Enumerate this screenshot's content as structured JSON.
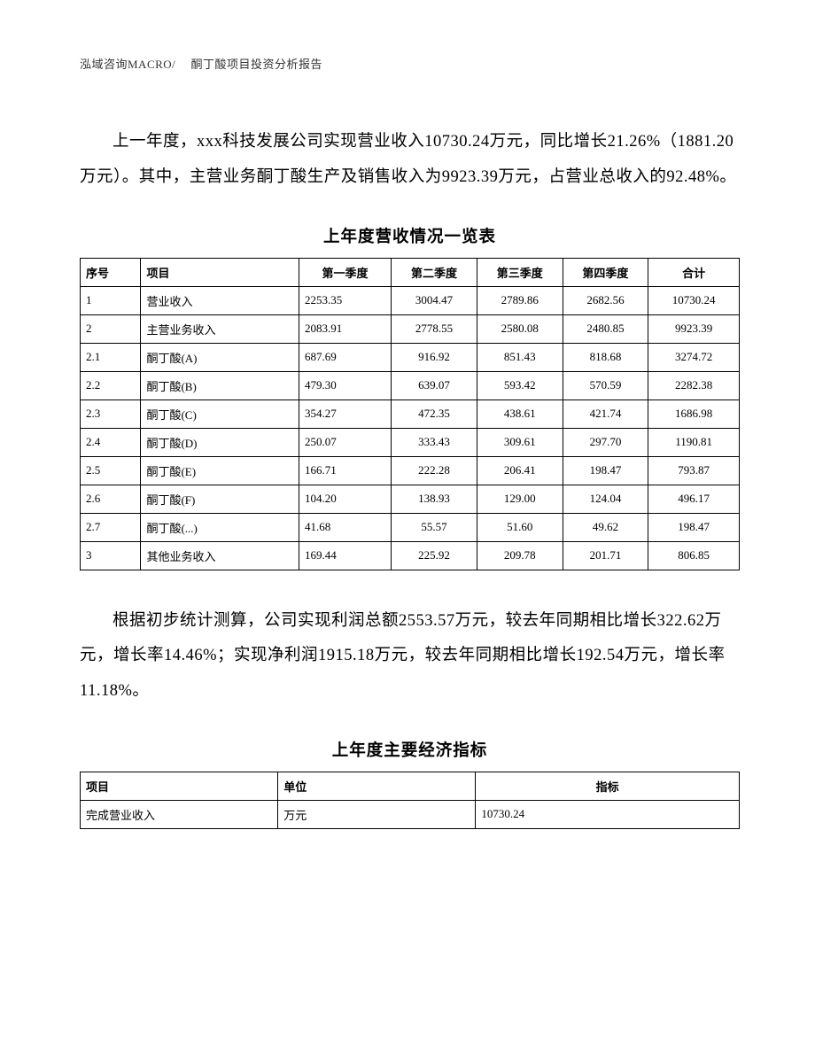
{
  "header": "泓域咨询MACRO/　 酮丁酸项目投资分析报告",
  "paragraph1": "上一年度，xxx科技发展公司实现营业收入10730.24万元，同比增长21.26%（1881.20万元）。其中，主营业务酮丁酸生产及销售收入为9923.39万元，占营业总收入的92.48%。",
  "table1": {
    "title": "上年度营收情况一览表",
    "headers": [
      "序号",
      "项目",
      "第一季度",
      "第二季度",
      "第三季度",
      "第四季度",
      "合计"
    ],
    "rows": [
      [
        "1",
        "营业收入",
        "2253.35",
        "3004.47",
        "2789.86",
        "2682.56",
        "10730.24"
      ],
      [
        "2",
        "主营业务收入",
        "2083.91",
        "2778.55",
        "2580.08",
        "2480.85",
        "9923.39"
      ],
      [
        "2.1",
        "酮丁酸(A)",
        "687.69",
        "916.92",
        "851.43",
        "818.68",
        "3274.72"
      ],
      [
        "2.2",
        "酮丁酸(B)",
        "479.30",
        "639.07",
        "593.42",
        "570.59",
        "2282.38"
      ],
      [
        "2.3",
        "酮丁酸(C)",
        "354.27",
        "472.35",
        "438.61",
        "421.74",
        "1686.98"
      ],
      [
        "2.4",
        "酮丁酸(D)",
        "250.07",
        "333.43",
        "309.61",
        "297.70",
        "1190.81"
      ],
      [
        "2.5",
        "酮丁酸(E)",
        "166.71",
        "222.28",
        "206.41",
        "198.47",
        "793.87"
      ],
      [
        "2.6",
        "酮丁酸(F)",
        "104.20",
        "138.93",
        "129.00",
        "124.04",
        "496.17"
      ],
      [
        "2.7",
        "酮丁酸(...)",
        "41.68",
        "55.57",
        "51.60",
        "49.62",
        "198.47"
      ],
      [
        "3",
        "其他业务收入",
        "169.44",
        "225.92",
        "209.78",
        "201.71",
        "806.85"
      ]
    ]
  },
  "paragraph2": "根据初步统计测算，公司实现利润总额2553.57万元，较去年同期相比增长322.62万元，增长率14.46%；实现净利润1915.18万元，较去年同期相比增长192.54万元，增长率11.18%。",
  "table2": {
    "title": "上年度主要经济指标",
    "headers": [
      "项目",
      "单位",
      "指标"
    ],
    "rows": [
      [
        "完成营业收入",
        "万元",
        "10730.24"
      ]
    ]
  }
}
